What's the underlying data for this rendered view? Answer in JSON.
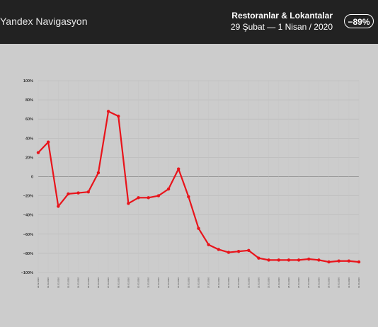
{
  "header": {
    "brand": "Yandex Navigasyon",
    "title": "Restoranlar & Lokantalar",
    "subtitle": "29 Şubat  —  1 Nisan / 2020",
    "badge": "−89%"
  },
  "colors": {
    "line": "#e8141b",
    "header_bg": "#222222",
    "plot_bg": "#cccccc"
  },
  "chart_data": {
    "type": "line",
    "title": "",
    "xlabel": "",
    "ylabel": "",
    "ylim": [
      -100,
      100
    ],
    "yticks": [
      -100,
      -80,
      -60,
      -40,
      -20,
      0,
      20,
      40,
      60,
      80,
      100
    ],
    "ytick_labels": [
      "−100%",
      "−80%",
      "−60%",
      "−40%",
      "−20%",
      "0",
      "20%",
      "40%",
      "60%",
      "80%",
      "100%"
    ],
    "grid": true,
    "categories": [
      "29.02.2020",
      "01.03.2020",
      "02.03.2020",
      "03.03.2020",
      "04.03.2020",
      "05.03.2020",
      "06.03.2020",
      "07.03.2020",
      "08.03.2020",
      "09.03.2020",
      "10.03.2020",
      "11.03.2020",
      "12.03.2020",
      "13.03.2020",
      "14.03.2020",
      "15.03.2020",
      "16.03.2020",
      "17.03.2020",
      "18.03.2020",
      "19.03.2020",
      "20.03.2020",
      "21.03.2020",
      "22.03.2020",
      "23.03.2020",
      "24.03.2020",
      "25.03.2020",
      "26.03.2020",
      "27.03.2020",
      "28.03.2020",
      "29.03.2020",
      "30.03.2020",
      "31.03.2020",
      "01.04.2020"
    ],
    "series": [
      {
        "values": [
          25,
          36,
          -31,
          -18,
          -17,
          -16,
          4,
          68,
          63,
          -28,
          -22,
          -22,
          -20,
          -13,
          8,
          -21,
          -54,
          -71,
          -76,
          -79,
          -78,
          -77,
          -85,
          -87,
          -87,
          -87,
          -87,
          -86,
          -87,
          -89,
          -88,
          -88,
          -89
        ]
      }
    ]
  }
}
